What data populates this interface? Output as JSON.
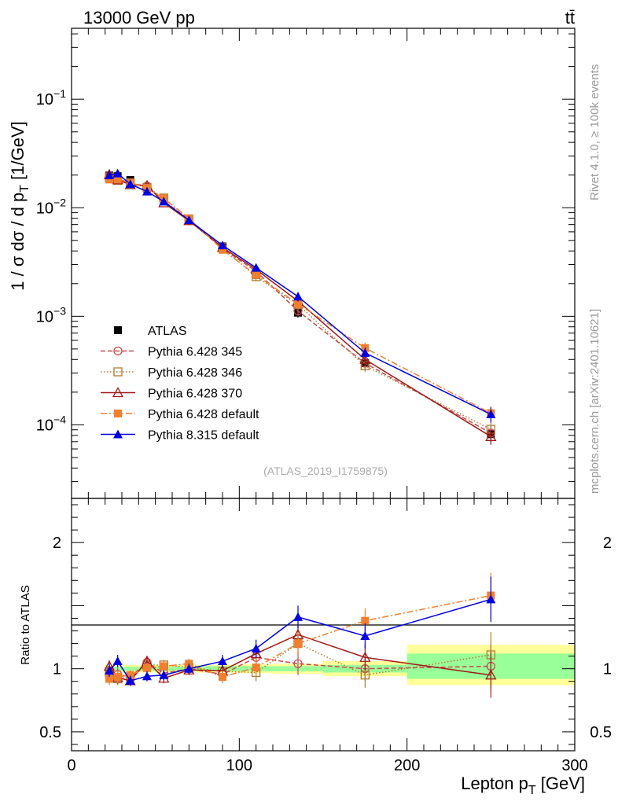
{
  "header": {
    "energy_label": "13000 GeV pp",
    "process_label": "tt̄"
  },
  "side_labels": {
    "rivet": "Rivet 4.1.0, ≥ 100k events",
    "site": "mcplots.cern.ch [arXiv:2401.10621]"
  },
  "analysis_id": "(ATLAS_2019_I1759875)",
  "chart_data": [
    {
      "type": "line",
      "panel": "main",
      "yscale": "log",
      "ylabel": "1 / σ  dσ / d p_T [1/GeV]",
      "xlabel": "",
      "xlim": [
        0,
        300
      ],
      "ylim": [
        2.1e-05,
        0.45
      ],
      "y_tick_labels": [
        "10^{-4}",
        "10^{-3}",
        "10^{-2}",
        "10^{-1}"
      ],
      "x": [
        22.5,
        27.5,
        35,
        45,
        55,
        70,
        90,
        110,
        135,
        175,
        250
      ],
      "series": [
        {
          "name": "ATLAS",
          "color": "#000000",
          "marker": "square-filled",
          "line": "none",
          "values": [
            0.0198,
            0.0195,
            0.018,
            0.015,
            0.012,
            0.0077,
            0.0044,
            0.0024,
            0.00108,
            0.00037,
            8.2e-05
          ]
        },
        {
          "name": "Pythia 6.428 345",
          "color": "#c84850",
          "marker": "circle-open",
          "line": "dashed",
          "values": [
            0.0195,
            0.0186,
            0.0168,
            0.0158,
            0.0116,
            0.0077,
            0.0042,
            0.0026,
            0.00112,
            0.00037,
            8.4e-05
          ]
        },
        {
          "name": "Pythia 6.428 346",
          "color": "#b07a30",
          "marker": "square-open",
          "line": "dotted",
          "values": [
            0.0192,
            0.0179,
            0.0168,
            0.0154,
            0.0123,
            0.0078,
            0.0043,
            0.00232,
            0.00128,
            0.00035,
            9.1e-05
          ]
        },
        {
          "name": "Pythia 6.428 370",
          "color": "#a01818",
          "marker": "triangle-open",
          "line": "solid",
          "values": [
            0.0202,
            0.0181,
            0.0163,
            0.016,
            0.0111,
            0.0076,
            0.0043,
            0.0027,
            0.00138,
            0.0004,
            7.8e-05
          ]
        },
        {
          "name": "Pythia 6.428 default",
          "color": "#f08030",
          "marker": "square-filled",
          "line": "dashdot",
          "values": [
            0.0182,
            0.0182,
            0.0171,
            0.0151,
            0.0122,
            0.008,
            0.0041,
            0.0024,
            0.0013,
            0.00051,
            0.000128
          ]
        },
        {
          "name": "Pythia 8.315 default",
          "color": "#0000e0",
          "marker": "triangle-filled",
          "line": "solid",
          "values": [
            0.0199,
            0.0207,
            0.0165,
            0.0141,
            0.0114,
            0.0077,
            0.0045,
            0.0028,
            0.00152,
            0.00046,
            0.000125
          ]
        }
      ]
    },
    {
      "type": "line",
      "panel": "ratio",
      "ylabel": "Ratio to ATLAS",
      "xlabel": "Lepton p_T [GeV]",
      "xlim": [
        0,
        300
      ],
      "ylim": [
        0.35,
        2.35
      ],
      "y_tick_labels": [
        "0.5",
        "1",
        "2"
      ],
      "x_tick_labels": [
        "0",
        "100",
        "200",
        "300"
      ],
      "x": [
        22.5,
        27.5,
        35,
        45,
        55,
        70,
        90,
        110,
        135,
        175,
        250
      ],
      "uncertainty_bands": [
        {
          "x_range": [
            20,
            25
          ],
          "inner": [
            0.985,
            1.015
          ],
          "outer": [
            0.97,
            1.03
          ]
        },
        {
          "x_range": [
            25,
            30
          ],
          "inner": [
            0.985,
            1.015
          ],
          "outer": [
            0.97,
            1.03
          ]
        },
        {
          "x_range": [
            30,
            40
          ],
          "inner": [
            0.985,
            1.015
          ],
          "outer": [
            0.97,
            1.03
          ]
        },
        {
          "x_range": [
            40,
            50
          ],
          "inner": [
            0.985,
            1.015
          ],
          "outer": [
            0.97,
            1.03
          ]
        },
        {
          "x_range": [
            50,
            60
          ],
          "inner": [
            0.985,
            1.015
          ],
          "outer": [
            0.97,
            1.03
          ]
        },
        {
          "x_range": [
            60,
            80
          ],
          "inner": [
            0.985,
            1.015
          ],
          "outer": [
            0.97,
            1.03
          ]
        },
        {
          "x_range": [
            80,
            100
          ],
          "inner": [
            0.98,
            1.02
          ],
          "outer": [
            0.97,
            1.03
          ]
        },
        {
          "x_range": [
            100,
            120
          ],
          "inner": [
            0.98,
            1.02
          ],
          "outer": [
            0.965,
            1.035
          ]
        },
        {
          "x_range": [
            120,
            150
          ],
          "inner": [
            0.98,
            1.02
          ],
          "outer": [
            0.96,
            1.04
          ]
        },
        {
          "x_range": [
            150,
            200
          ],
          "inner": [
            0.97,
            1.03
          ],
          "outer": [
            0.94,
            1.06
          ]
        },
        {
          "x_range": [
            200,
            300
          ],
          "inner": [
            0.92,
            1.12
          ],
          "outer": [
            0.87,
            1.19
          ]
        }
      ],
      "series": [
        {
          "name": "Pythia 6.428 345",
          "color": "#c84850",
          "marker": "circle-open",
          "line": "dashed",
          "values": [
            0.985,
            0.955,
            0.935,
            1.05,
            0.965,
            1.0,
            0.955,
            1.09,
            1.04,
            1.0,
            1.02
          ]
        },
        {
          "name": "Pythia 6.428 346",
          "color": "#b07a30",
          "marker": "square-open",
          "line": "dotted",
          "values": [
            0.97,
            0.92,
            0.935,
            1.03,
            1.03,
            1.01,
            0.98,
            0.97,
            1.2,
            0.95,
            1.11
          ]
        },
        {
          "name": "Pythia 6.428 370",
          "color": "#a01818",
          "marker": "triangle-open",
          "line": "solid",
          "values": [
            1.02,
            0.93,
            0.905,
            1.06,
            0.925,
            0.99,
            0.985,
            1.12,
            1.27,
            1.09,
            0.95
          ]
        },
        {
          "name": "Pythia 6.428 default",
          "color": "#f08030",
          "marker": "square-filled",
          "line": "dashdot",
          "values": [
            0.92,
            0.935,
            0.95,
            1.005,
            1.02,
            1.04,
            0.935,
            1.01,
            1.2,
            1.38,
            1.58
          ]
        },
        {
          "name": "Pythia 8.315 default",
          "color": "#0000e0",
          "marker": "triangle-filled",
          "line": "solid",
          "values": [
            0.985,
            1.06,
            0.905,
            0.94,
            0.95,
            1.0,
            1.06,
            1.16,
            1.41,
            1.26,
            1.55
          ]
        }
      ]
    }
  ]
}
